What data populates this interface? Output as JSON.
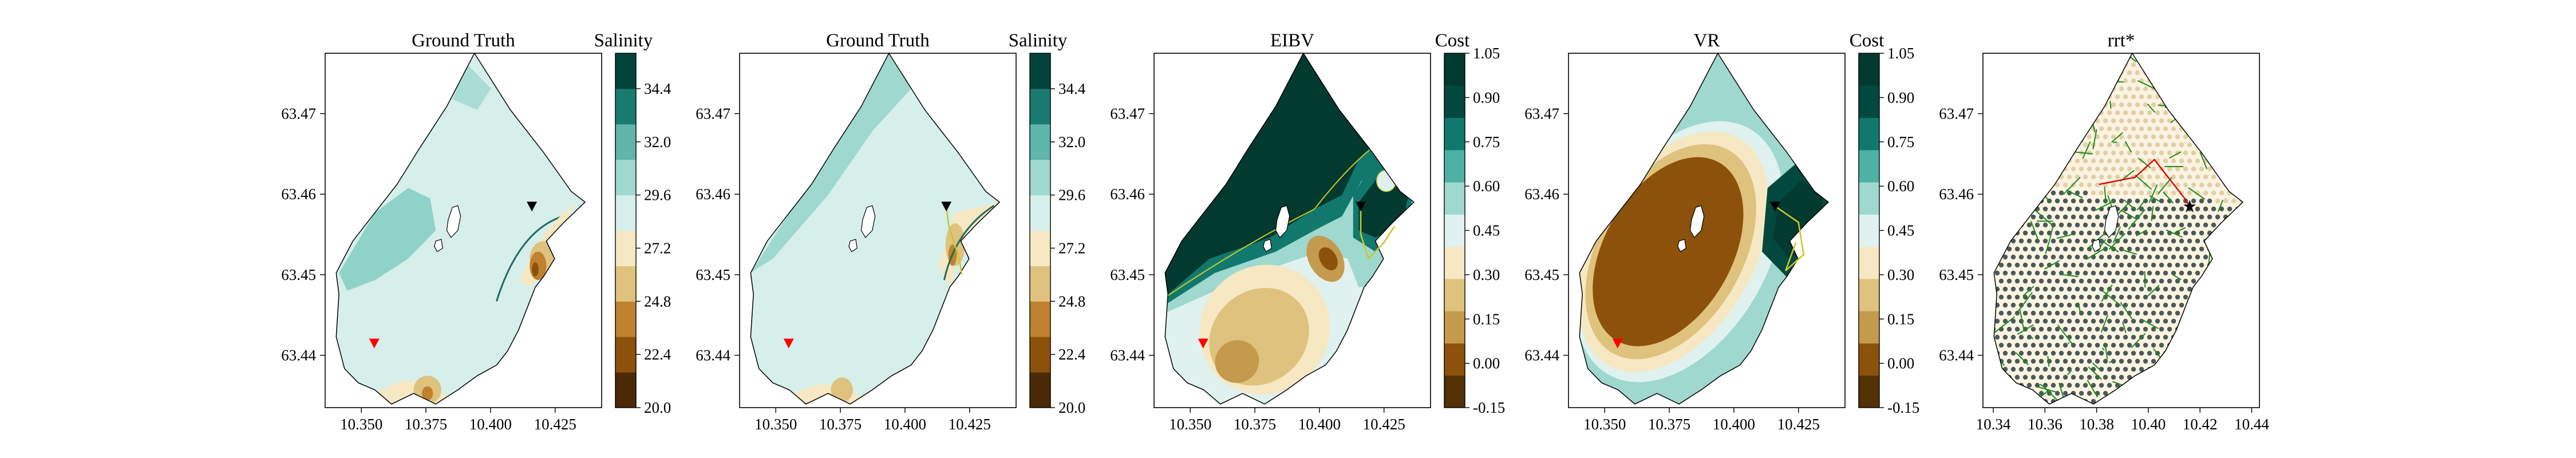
{
  "colors": {
    "brbg": [
      "#543005",
      "#8c510a",
      "#bf812d",
      "#dfc27d",
      "#f6e8c3",
      "#f5f5f5",
      "#c7eae5",
      "#80cdc1",
      "#35978f",
      "#01665e",
      "#003c30"
    ],
    "salinity_bands": [
      "#4a2a06",
      "#8c510a",
      "#bf812d",
      "#dfc27d",
      "#f6e8c3",
      "#d6efeb",
      "#9fd8cf",
      "#5fb5a9",
      "#1a7a70",
      "#02443a"
    ],
    "cost_bands": [
      "#543005",
      "#8c510a",
      "#c49a4c",
      "#dfc27d",
      "#f6e8c3",
      "#e0f2ef",
      "#9fd8cf",
      "#4fb0a4",
      "#11786d",
      "#01493e",
      "#023a30"
    ],
    "contour_line": "#1e6b63",
    "path_line": "#c8c82a",
    "start_marker": "#ff0000",
    "end_marker": "#000000",
    "tree_edge": "#1a8a1a",
    "tree_path": "#e00000",
    "grid_node": "#4b5a5a"
  },
  "chart_data": [
    {
      "type": "contour",
      "title": "Ground Truth",
      "colorbar_label": "Salinity",
      "colorbar_ticks": [
        "20.0",
        "22.4",
        "24.8",
        "27.2",
        "29.6",
        "32.0",
        "34.4"
      ],
      "colorbar_range": [
        20.0,
        36.0
      ],
      "x_ticks": [
        "10.350",
        "10.375",
        "10.400",
        "10.425"
      ],
      "y_ticks": [
        "63.44",
        "63.45",
        "63.46",
        "63.47"
      ],
      "xlim": [
        10.336,
        10.443
      ],
      "ylim": [
        63.4335,
        63.4775
      ],
      "start": [
        10.355,
        63.4415
      ],
      "end": [
        10.416,
        63.4585
      ],
      "path": []
    },
    {
      "type": "contour",
      "title": "Ground Truth",
      "colorbar_label": "Salinity",
      "colorbar_ticks": [
        "20.0",
        "22.4",
        "24.8",
        "27.2",
        "29.6",
        "32.0",
        "34.4"
      ],
      "colorbar_range": [
        20.0,
        36.0
      ],
      "x_ticks": [
        "10.350",
        "10.375",
        "10.400",
        "10.425"
      ],
      "y_ticks": [
        "63.44",
        "63.45",
        "63.46",
        "63.47"
      ],
      "xlim": [
        10.336,
        10.443
      ],
      "ylim": [
        63.4335,
        63.4775
      ],
      "start": [
        10.355,
        63.4415
      ],
      "end": [
        10.416,
        63.4585
      ],
      "path": [
        [
          10.416,
          63.4585
        ],
        [
          10.417,
          63.456
        ],
        [
          10.419,
          63.454
        ],
        [
          10.421,
          63.452
        ],
        [
          10.422,
          63.45
        ]
      ]
    },
    {
      "type": "contour",
      "title": "EIBV",
      "colorbar_label": "Cost",
      "colorbar_ticks": [
        "-0.15",
        "0.00",
        "0.15",
        "0.30",
        "0.45",
        "0.60",
        "0.75",
        "0.90",
        "1.05"
      ],
      "colorbar_range": [
        -0.15,
        1.05
      ],
      "x_ticks": [
        "10.350",
        "10.375",
        "10.400",
        "10.425"
      ],
      "y_ticks": [
        "63.44",
        "63.45",
        "63.46",
        "63.47"
      ],
      "xlim": [
        10.336,
        10.443
      ],
      "ylim": [
        63.4335,
        63.4775
      ],
      "start": [
        10.355,
        63.4415
      ],
      "end": [
        10.416,
        63.4585
      ],
      "path": [
        [
          10.416,
          63.4585
        ],
        [
          10.416,
          63.455
        ],
        [
          10.419,
          63.452
        ],
        [
          10.425,
          63.454
        ],
        [
          10.429,
          63.456
        ]
      ]
    },
    {
      "type": "contour",
      "title": "VR",
      "colorbar_label": "Cost",
      "colorbar_ticks": [
        "-0.15",
        "0.00",
        "0.15",
        "0.30",
        "0.45",
        "0.60",
        "0.75",
        "0.90",
        "1.05"
      ],
      "colorbar_range": [
        -0.15,
        1.05
      ],
      "x_ticks": [
        "10.350",
        "10.375",
        "10.400",
        "10.425"
      ],
      "y_ticks": [
        "63.44",
        "63.45",
        "63.46",
        "63.47"
      ],
      "xlim": [
        10.336,
        10.443
      ],
      "ylim": [
        63.4335,
        63.4775
      ],
      "start": [
        10.355,
        63.4415
      ],
      "end": [
        10.416,
        63.4585
      ],
      "path": [
        [
          10.416,
          63.4585
        ],
        [
          10.425,
          63.4565
        ],
        [
          10.427,
          63.4525
        ],
        [
          10.42,
          63.4505
        ],
        [
          10.424,
          63.454
        ]
      ]
    },
    {
      "type": "scatter",
      "title": "rrt*",
      "x_ticks": [
        "10.34",
        "10.36",
        "10.38",
        "10.40",
        "10.42",
        "10.44"
      ],
      "y_ticks": [
        "63.44",
        "63.45",
        "63.46",
        "63.47"
      ],
      "xlim": [
        10.336,
        10.443
      ],
      "ylim": [
        63.4335,
        63.4775
      ],
      "end": [
        10.416,
        63.4585
      ]
    }
  ]
}
